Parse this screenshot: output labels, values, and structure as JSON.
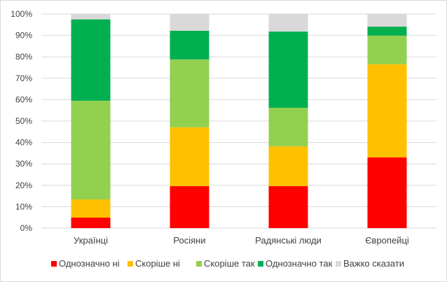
{
  "chart_data": {
    "type": "bar",
    "stacked": true,
    "categories": [
      "Українці",
      "Росіяни",
      "Радянські люди",
      "Європейці"
    ],
    "series": [
      {
        "name": "Однозначно ні",
        "color": "#ff0000",
        "values": [
          4.9,
          19.6,
          19.6,
          33.0
        ]
      },
      {
        "name": "Скоріше ні",
        "color": "#ffc000",
        "values": [
          8.5,
          27.5,
          18.6,
          43.5
        ]
      },
      {
        "name": "Скоріше так",
        "color": "#92d050",
        "values": [
          46.1,
          31.7,
          18.0,
          13.4
        ]
      },
      {
        "name": "Однозначно так",
        "color": "#00b050",
        "values": [
          38.0,
          13.4,
          35.6,
          4.2
        ]
      },
      {
        "name": "Важко сказати",
        "color": "#d9d9d9",
        "values": [
          2.5,
          7.8,
          8.2,
          5.9
        ]
      }
    ],
    "yticks": [
      "0%",
      "10%",
      "20%",
      "30%",
      "40%",
      "50%",
      "60%",
      "70%",
      "80%",
      "90%",
      "100%"
    ],
    "ylim": [
      0,
      100
    ],
    "title": "",
    "xlabel": "",
    "ylabel": "",
    "grid": true,
    "legend": "bottom"
  }
}
